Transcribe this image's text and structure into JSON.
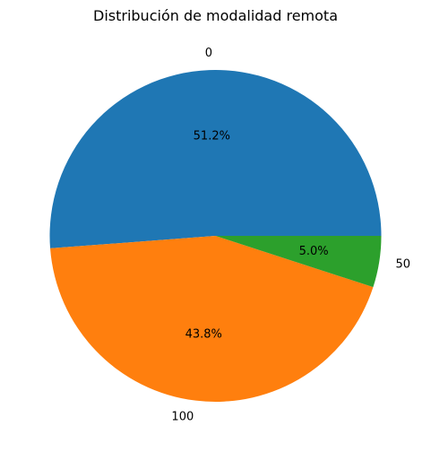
{
  "chart_data": {
    "type": "pie",
    "title": "Distribución de modalidad remota",
    "slices": [
      {
        "label": "0",
        "value": 51.2,
        "pct_label": "51.2%",
        "color": "#1f77b4"
      },
      {
        "label": "100",
        "value": 43.8,
        "pct_label": "43.8%",
        "color": "#ff7f0e"
      },
      {
        "label": "50",
        "value": 5.0,
        "pct_label": "5.0%",
        "color": "#2ca02c"
      }
    ],
    "start_angle": 0,
    "direction": "counterclockwise",
    "legend": "none"
  }
}
